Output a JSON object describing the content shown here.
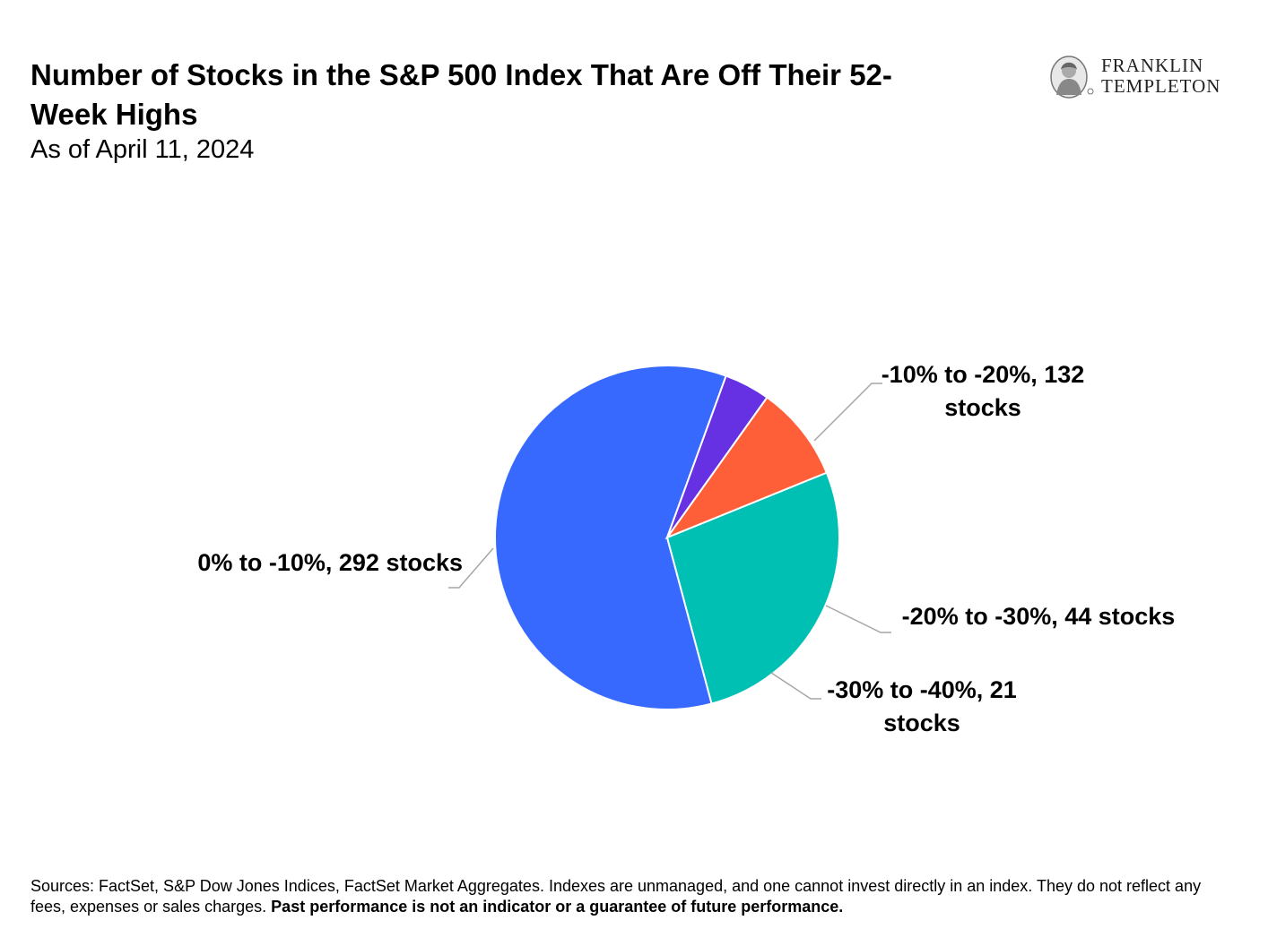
{
  "header": {
    "title": "Number of Stocks in the S&P 500 Index That Are Off Their 52-Week Highs",
    "subtitle": "As of April 11, 2024"
  },
  "logo": {
    "line1": "FRANKLIN",
    "line2": "TEMPLETON",
    "icon": "benjamin-franklin-portrait-icon"
  },
  "chart_data": {
    "type": "pie",
    "title": "Number of Stocks in the S&P 500 Index That Are Off Their 52-Week Highs",
    "subtitle": "As of April 11, 2024",
    "categories": [
      "0% to -10%",
      "-10% to -20%",
      "-20% to -30%",
      "-30% to -40%"
    ],
    "values": [
      292,
      132,
      44,
      21
    ],
    "labels": [
      [
        "0% to -10%, 292 stocks"
      ],
      [
        "-10% to -20%, 132",
        "stocks"
      ],
      [
        "-20% to -30%, 44 stocks"
      ],
      [
        "-30% to -40%, 21",
        "stocks"
      ]
    ],
    "colors": [
      "#3869FF",
      "#00BFB3",
      "#FF5F38",
      "#6531E3"
    ],
    "legend": "none"
  },
  "footer": {
    "sources": "Sources: FactSet, S&P Dow Jones Indices, FactSet Market Aggregates. Indexes are unmanaged, and one cannot invest directly in an index. They do not reflect any fees, expenses or sales charges.",
    "disclaimer": "Past performance is not an indicator or a guarantee of future performance."
  }
}
